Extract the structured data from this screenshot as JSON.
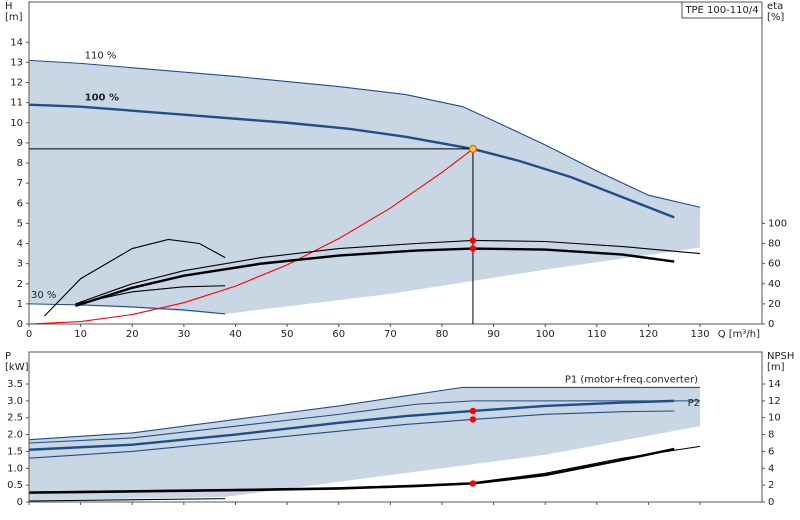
{
  "chart_data": [
    {
      "type": "line",
      "title": "TPE 100-110/4",
      "ylabel": [
        "H",
        "[m]"
      ],
      "y2label": [
        "eta",
        "[%]"
      ],
      "xlabel": "Q [m³/h]",
      "xlim": [
        0,
        142
      ],
      "xticks": [
        0,
        10,
        20,
        30,
        40,
        50,
        60,
        70,
        80,
        90,
        100,
        110,
        120,
        130
      ],
      "ylim": [
        0,
        16
      ],
      "yticks": [
        0,
        1,
        2,
        3,
        4,
        5,
        6,
        7,
        8,
        9,
        10,
        11,
        12,
        13,
        14
      ],
      "y2lim": [
        0,
        320
      ],
      "y2ticks": [
        0,
        20,
        40,
        60,
        80,
        100
      ],
      "operating_point": {
        "x": 86,
        "y": 8.7
      },
      "series": [
        {
          "style": "area",
          "color": "#c9d6e4",
          "x": [
            0,
            10,
            40,
            60,
            73,
            84,
            90,
            100,
            110,
            120,
            130,
            130,
            100,
            70,
            38,
            20,
            0
          ],
          "values": [
            13.1,
            12.95,
            12.3,
            11.8,
            11.4,
            10.8,
            10.1,
            8.9,
            7.6,
            6.4,
            5.8,
            3.8,
            2.7,
            1.5,
            0.5,
            0.8,
            1.0
          ]
        },
        {
          "name": "110 %",
          "style": "line",
          "color": "#1f4e8c",
          "x": [
            0,
            10,
            40,
            60,
            73,
            84,
            90,
            100,
            110,
            120,
            130
          ],
          "values": [
            13.1,
            12.95,
            12.3,
            11.8,
            11.4,
            10.8,
            10.1,
            8.9,
            7.6,
            6.4,
            5.8
          ]
        },
        {
          "name": "100 %",
          "style": "line",
          "bold": true,
          "color": "#1f4e8c",
          "x": [
            0,
            10,
            30,
            50,
            62,
            73,
            86,
            95,
            105,
            115,
            125
          ],
          "values": [
            10.9,
            10.8,
            10.4,
            10.0,
            9.7,
            9.3,
            8.7,
            8.1,
            7.3,
            6.3,
            5.3
          ]
        },
        {
          "name": "30 %",
          "style": "line",
          "color": "#1f4e8c",
          "x": [
            0,
            10,
            20,
            30,
            38
          ],
          "values": [
            1.0,
            0.95,
            0.85,
            0.7,
            0.5
          ]
        },
        {
          "style": "line",
          "color": "#ff0000",
          "x": [
            0,
            10,
            20,
            30,
            40,
            50,
            60,
            70,
            80,
            86
          ],
          "values": [
            0,
            0.12,
            0.47,
            1.06,
            1.88,
            2.94,
            4.24,
            5.76,
            7.53,
            8.7
          ]
        },
        {
          "style": "line",
          "axis": "y2",
          "color": "#000000",
          "x": [
            9,
            20,
            30,
            45,
            60,
            75,
            86,
            100,
            115,
            130
          ],
          "values": [
            20,
            40,
            53,
            66,
            75,
            80,
            83,
            82,
            77,
            70
          ]
        },
        {
          "style": "line",
          "axis": "y2",
          "bold": true,
          "color": "#000000",
          "x": [
            9,
            20,
            30,
            45,
            60,
            75,
            86,
            100,
            115,
            125
          ],
          "values": [
            18,
            36,
            48,
            60,
            68,
            73,
            75,
            74,
            69,
            62
          ]
        },
        {
          "style": "line",
          "axis": "y2",
          "color": "#000000",
          "x": [
            3,
            10,
            20,
            27,
            33,
            38
          ],
          "values": [
            8,
            45,
            75,
            84,
            80,
            66
          ]
        },
        {
          "style": "line",
          "axis": "y2",
          "color": "#000000",
          "x": [
            9,
            20,
            30,
            38
          ],
          "values": [
            20,
            32,
            37,
            38
          ]
        },
        {
          "style": "dots",
          "axis": "y2",
          "color": "#ff0000",
          "x": [
            86,
            86
          ],
          "values": [
            83,
            75
          ]
        }
      ]
    },
    {
      "type": "line",
      "ylabel": [
        "P",
        "[kW]"
      ],
      "y2label": [
        "NPSH",
        "[m]"
      ],
      "xlim": [
        0,
        142
      ],
      "xticks": [
        0,
        10,
        20,
        30,
        40,
        50,
        60,
        70,
        80,
        90,
        100,
        110,
        120,
        130
      ],
      "ylim": [
        0,
        4.45
      ],
      "yticks": [
        0,
        0.5,
        {
          "value": 1,
          "label": "1.0"
        },
        1.5,
        {
          "value": 2,
          "label": "2.0"
        },
        2.5,
        {
          "value": 3,
          "label": "3.0"
        },
        3.5
      ],
      "y2lim": [
        0,
        17.8
      ],
      "y2ticks": [
        0,
        2,
        4,
        6,
        8,
        10,
        12,
        14
      ],
      "series": [
        {
          "style": "area",
          "color": "#c9d6e4",
          "x": [
            0,
            20,
            40,
            60,
            73,
            84,
            100,
            130,
            130,
            100,
            60,
            38,
            0
          ],
          "values": [
            1.85,
            2.05,
            2.45,
            2.85,
            3.15,
            3.4,
            3.4,
            3.4,
            2.25,
            1.4,
            0.6,
            0.15,
            0.05
          ]
        },
        {
          "name": "P1 (motor+freq.converter)",
          "style": "line",
          "color": "#1f4e8c",
          "x": [
            0,
            20,
            40,
            60,
            73,
            84,
            100,
            130
          ],
          "values": [
            1.85,
            2.05,
            2.45,
            2.85,
            3.15,
            3.4,
            3.4,
            3.4
          ]
        },
        {
          "style": "line",
          "bold": true,
          "color": "#1f4e8c",
          "x": [
            0,
            20,
            40,
            60,
            73,
            86,
            100,
            115,
            125
          ],
          "values": [
            1.55,
            1.7,
            2.0,
            2.35,
            2.55,
            2.7,
            2.85,
            2.95,
            3.0
          ]
        },
        {
          "style": "line",
          "color": "#1f4e8c",
          "x": [
            0,
            20,
            40,
            60,
            75,
            86,
            100,
            130
          ],
          "values": [
            1.75,
            1.9,
            2.25,
            2.6,
            2.9,
            3.0,
            3.0,
            3.0
          ]
        },
        {
          "name": "P2",
          "style": "line",
          "color": "#1f4e8c",
          "x": [
            0,
            20,
            40,
            60,
            73,
            86,
            100,
            115,
            125
          ],
          "values": [
            1.3,
            1.5,
            1.8,
            2.1,
            2.3,
            2.45,
            2.6,
            2.68,
            2.7
          ]
        },
        {
          "style": "line",
          "color": "#000000",
          "x": [
            0,
            38
          ],
          "values": [
            0.03,
            0.1
          ]
        },
        {
          "style": "line",
          "axis": "y2",
          "bold": true,
          "color": "#000000",
          "x": [
            0,
            40,
            60,
            75,
            86,
            100,
            115,
            125
          ],
          "values": [
            1.1,
            1.4,
            1.6,
            1.9,
            2.2,
            3.2,
            5.0,
            6.3
          ]
        },
        {
          "style": "line",
          "axis": "y2",
          "color": "#000000",
          "x": [
            0,
            40,
            60,
            75,
            86,
            100,
            115,
            130
          ],
          "values": [
            1.2,
            1.5,
            1.7,
            2.0,
            2.3,
            3.4,
            5.2,
            6.6
          ]
        },
        {
          "style": "dots",
          "color": "#ff0000",
          "x": [
            86,
            86
          ],
          "values": [
            2.7,
            2.45
          ]
        },
        {
          "style": "dots",
          "axis": "y2",
          "color": "#ff0000",
          "x": [
            86
          ],
          "values": [
            2.2
          ]
        }
      ]
    }
  ]
}
